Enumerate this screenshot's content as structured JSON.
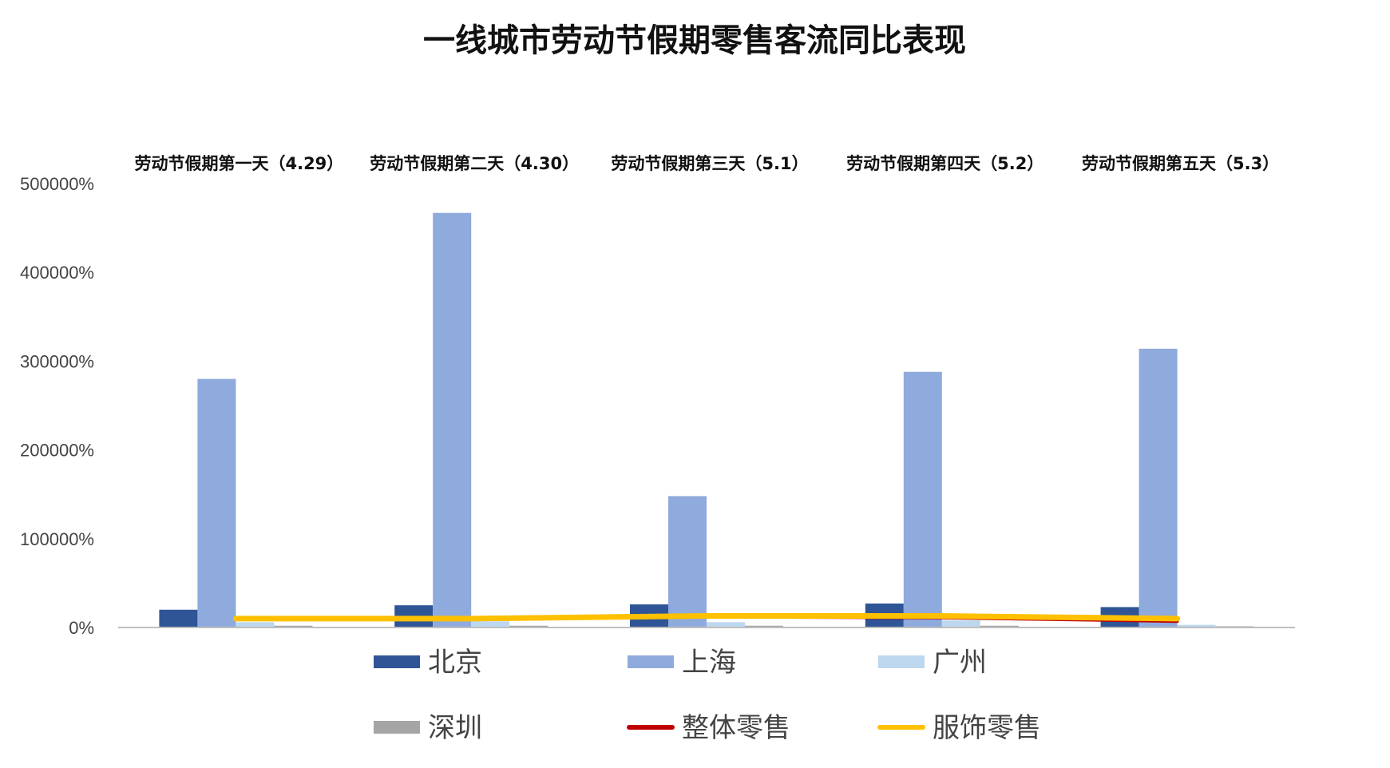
{
  "chart_data": {
    "type": "bar",
    "title": "一线城市劳动节假期零售客流同比表现",
    "categories": [
      "劳动节假期第一天（4.29）",
      "劳动节假期第二天（4.30）",
      "劳动节假期第三天（5.1）",
      "劳动节假期第四天（5.2）",
      "劳动节假期第五天（5.3）"
    ],
    "ylim": [
      0,
      500000
    ],
    "yticks": [
      0,
      100000,
      200000,
      300000,
      400000,
      500000
    ],
    "ytick_labels": [
      "0%",
      "100000%",
      "200000%",
      "300000%",
      "400000%",
      "500000%"
    ],
    "grid": false,
    "legend_position": "bottom",
    "series": [
      {
        "name": "北京",
        "kind": "bar",
        "color": "#2f5597",
        "values": [
          20000,
          25000,
          26000,
          27000,
          23000
        ]
      },
      {
        "name": "上海",
        "kind": "bar",
        "color": "#8faadc",
        "values": [
          280000,
          467000,
          148000,
          288000,
          314000
        ]
      },
      {
        "name": "广州",
        "kind": "bar",
        "color": "#bdd7ee",
        "values": [
          6000,
          7000,
          6000,
          8000,
          3000
        ]
      },
      {
        "name": "深圳",
        "kind": "bar",
        "color": "#a5a5a5",
        "values": [
          2000,
          2000,
          2000,
          2000,
          1000
        ]
      },
      {
        "name": "整体零售",
        "kind": "line",
        "color": "#c00000",
        "values": [
          9000,
          9000,
          12000,
          11000,
          7000
        ]
      },
      {
        "name": "服饰零售",
        "kind": "line",
        "color": "#ffc000",
        "values": [
          10000,
          10000,
          13000,
          13000,
          10000
        ]
      }
    ]
  }
}
